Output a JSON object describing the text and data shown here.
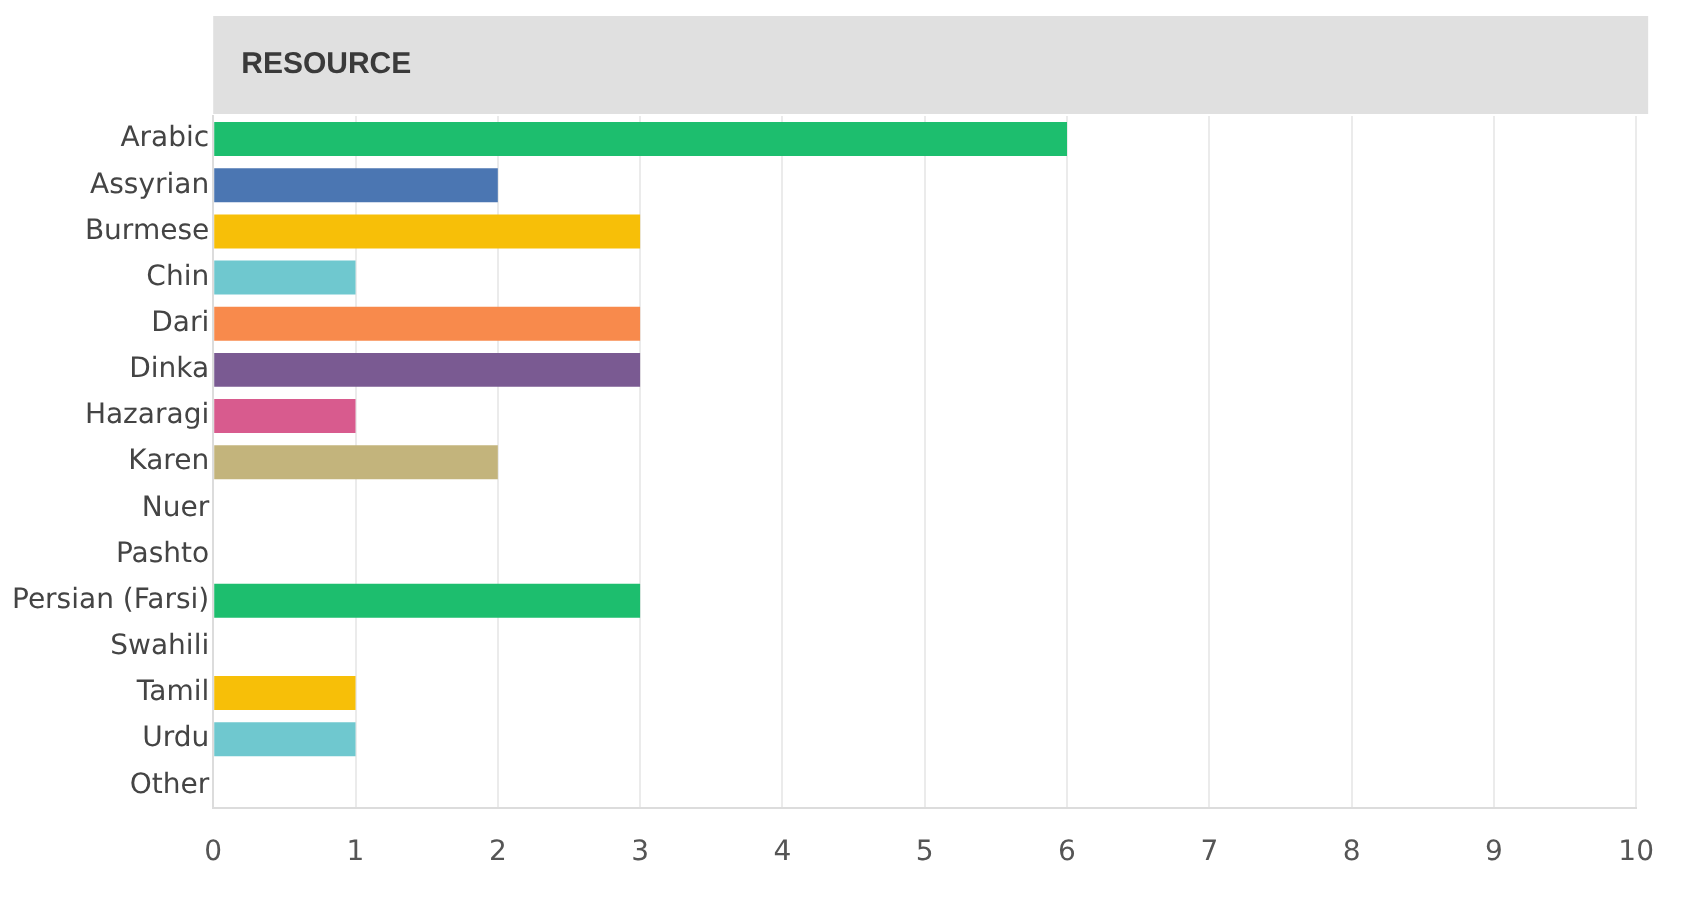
{
  "chart_data": {
    "type": "bar",
    "orientation": "horizontal",
    "title": "RESOURCE",
    "categories": [
      "Arabic",
      "Assyrian",
      "Burmese",
      "Chin",
      "Dari",
      "Dinka",
      "Hazaragi",
      "Karen",
      "Nuer",
      "Pashto",
      "Persian (Farsi)",
      "Swahili",
      "Tamil",
      "Urdu",
      "Other"
    ],
    "values": [
      6,
      2,
      3,
      1,
      3,
      3,
      1,
      2,
      0,
      0,
      3,
      0,
      1,
      1,
      0
    ],
    "colors": [
      "#1dbe6e",
      "#4b76b2",
      "#f7bf08",
      "#6fc8cf",
      "#f88a4c",
      "#7a5a92",
      "#d85b8e",
      "#c3b47c",
      "#1dbe6e",
      "#1dbe6e",
      "#1dbe6e",
      "#1dbe6e",
      "#f7bf08",
      "#6fc8cf",
      "#1dbe6e"
    ],
    "xlim": [
      0,
      10
    ],
    "xticks": [
      0,
      1,
      2,
      3,
      4,
      5,
      6,
      7,
      8,
      9,
      10
    ],
    "grid": "x",
    "legend": false
  }
}
